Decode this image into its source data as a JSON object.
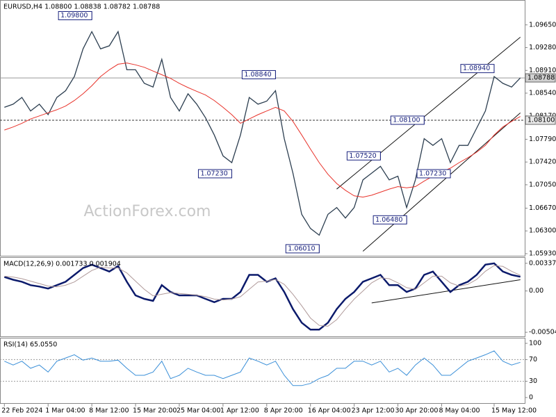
{
  "chart_data": [
    {
      "type": "line",
      "title": "EURUSD,H4 1.08800 1.08838 1.08782 1.08788",
      "watermark": "ActionForex.com",
      "ylim": [
        1.05896,
        1.10043
      ],
      "yticks": [
        {
          "value": 1.0965,
          "label": "1.09650"
        },
        {
          "value": 1.0928,
          "label": "1.09280"
        },
        {
          "value": 1.0891,
          "label": "1.08910"
        },
        {
          "value": 1.0854,
          "label": "1.08540"
        },
        {
          "value": 1.0817,
          "label": "1.08170"
        },
        {
          "value": 1.0779,
          "label": "1.07790"
        },
        {
          "value": 1.0742,
          "label": "1.07420"
        },
        {
          "value": 1.0705,
          "label": "1.07050"
        },
        {
          "value": 1.0667,
          "label": "1.06670"
        },
        {
          "value": 1.063,
          "label": "1.06300"
        },
        {
          "value": 1.0593,
          "label": "1.05930"
        }
      ],
      "series": [
        {
          "name": "Close",
          "color": "#2c3e50",
          "values": [
            1.0831,
            1.0836,
            1.0847,
            1.0825,
            1.0836,
            1.0819,
            1.0847,
            1.0858,
            1.0881,
            1.0926,
            1.0954,
            1.0926,
            1.0931,
            1.0954,
            1.0892,
            1.0892,
            1.087,
            1.0864,
            1.0909,
            1.0847,
            1.0825,
            1.0853,
            1.0836,
            1.0814,
            1.0786,
            1.0752,
            1.0741,
            1.0786,
            1.0847,
            1.0836,
            1.0841,
            1.0858,
            1.078,
            1.0724,
            1.0657,
            1.0634,
            1.0623,
            1.0657,
            1.0668,
            1.0651,
            1.0668,
            1.0713,
            1.0724,
            1.0735,
            1.0713,
            1.0719,
            1.0668,
            1.0713,
            1.078,
            1.0769,
            1.078,
            1.0741,
            1.0769,
            1.0769,
            1.0797,
            1.0825,
            1.0881,
            1.087,
            1.0864,
            1.08788
          ]
        },
        {
          "name": "MA",
          "color": "#e8322a",
          "values": [
            1.0794,
            1.0799,
            1.0805,
            1.0812,
            1.0817,
            1.0822,
            1.0827,
            1.0833,
            1.0842,
            1.0853,
            1.0866,
            1.0881,
            1.0892,
            1.0901,
            1.0903,
            1.09,
            1.0896,
            1.089,
            1.0884,
            1.0878,
            1.087,
            1.0863,
            1.0857,
            1.0851,
            1.0842,
            1.0831,
            1.0819,
            1.0805,
            1.0812,
            1.0819,
            1.0825,
            1.0831,
            1.0825,
            1.0808,
            1.0786,
            1.0763,
            1.0741,
            1.0722,
            1.0707,
            1.0696,
            1.0687,
            1.0685,
            1.0688,
            1.0693,
            1.0698,
            1.0702,
            1.07,
            1.0702,
            1.0711,
            1.0719,
            1.0726,
            1.0732,
            1.0741,
            1.0749,
            1.0758,
            1.0769,
            1.0786,
            1.0799,
            1.0808,
            1.0816
          ]
        }
      ],
      "hlines": [
        {
          "value": 1.08788,
          "label": "1.08788",
          "style": "solid"
        },
        {
          "value": 1.081,
          "label": "1.08100",
          "style": "dashed"
        }
      ],
      "trendlines": [
        {
          "x": [
            38,
            59
          ],
          "y": [
            1.0698,
            1.0945
          ]
        },
        {
          "x": [
            41,
            59
          ],
          "y": [
            1.0597,
            1.0822
          ]
        }
      ],
      "annotations": [
        {
          "label": "1.09800",
          "value": 1.098,
          "at": 10
        },
        {
          "label": "1.08840",
          "value": 1.0884,
          "at": 31
        },
        {
          "label": "1.07230",
          "value": 1.0723,
          "at": 26
        },
        {
          "label": "1.06010",
          "value": 1.0601,
          "at": 36
        },
        {
          "label": "1.07520",
          "value": 1.0752,
          "at": 43
        },
        {
          "label": "1.06480",
          "value": 1.0648,
          "at": 46
        },
        {
          "label": "1.08100",
          "value": 1.081,
          "at": 48
        },
        {
          "label": "1.07230",
          "value": 1.0723,
          "at": 51
        },
        {
          "label": "1.08940",
          "value": 1.0894,
          "at": 56
        }
      ]
    },
    {
      "type": "line",
      "title": "MACD(12,26,9) 0.001733 0.001904",
      "ylim": [
        -0.00554,
        0.00404
      ],
      "yticks": [
        0.003375,
        {
          "value": 0,
          "label": "0.00"
        },
        -0.00504
      ],
      "series": [
        {
          "name": "MACD",
          "color": "#0b1a6b",
          "values": [
            0.00171,
            0.00137,
            0.00112,
            0.00071,
            0.00054,
            0.00029,
            0.00071,
            0.00112,
            0.00196,
            0.00279,
            0.00321,
            0.00279,
            0.00237,
            0.00304,
            0.00112,
            -0.00054,
            -0.00096,
            -0.00121,
            0.00071,
            -0.00012,
            -0.00054,
            -0.00054,
            -0.00054,
            -0.00096,
            -0.00137,
            -0.00096,
            -0.00096,
            -0.00012,
            0.00196,
            0.00196,
            0.00112,
            0.00154,
            -0.00012,
            -0.00221,
            -0.00387,
            -0.00471,
            -0.00471,
            -0.00387,
            -0.00221,
            -0.00096,
            -0.00012,
            0.00112,
            0.00154,
            0.00196,
            0.00071,
            0.00071,
            -0.00012,
            0.00029,
            0.00196,
            0.00237,
            0.00112,
            -0.00012,
            0.00071,
            0.00112,
            0.00196,
            0.00321,
            0.00337,
            0.00237,
            0.00196,
            0.001733
          ]
        },
        {
          "name": "Signal",
          "color": "#b09a9a",
          "values": [
            0.0018,
            0.0017,
            0.0015,
            0.0012,
            0.0009,
            0.0006,
            0.0005,
            0.0007,
            0.0011,
            0.0018,
            0.0025,
            0.0029,
            0.0028,
            0.0028,
            0.0022,
            0.0012,
            0.0002,
            -0.0006,
            -0.0004,
            -0.0002,
            -0.0003,
            -0.0004,
            -0.0005,
            -0.0007,
            -0.001,
            -0.0011,
            -0.001,
            -0.0007,
            0.0002,
            0.0011,
            0.0012,
            0.0014,
            0.0008,
            -0.0004,
            -0.0018,
            -0.0033,
            -0.0042,
            -0.0043,
            -0.0035,
            -0.0022,
            -0.001,
            0,
            0.001,
            0.0016,
            0.0015,
            0.001,
            0.0004,
            0.0002,
            0.001,
            0.0018,
            0.0018,
            0.001,
            0.0006,
            0.0008,
            0.0014,
            0.0024,
            0.0031,
            0.003,
            0.0024,
            0.001904
          ]
        }
      ],
      "trendlines": [
        {
          "x": [
            42,
            59
          ],
          "y": [
            -0.00146,
            0.00137
          ]
        }
      ]
    },
    {
      "type": "line",
      "title": "RSI(14) 65.0550",
      "ylim": [
        -10.3,
        109
      ],
      "yticks": [
        100,
        70,
        30,
        0
      ],
      "levels": [
        70,
        30
      ],
      "categories": [
        "22 Feb 2024",
        null,
        null,
        null,
        null,
        "1 Mar 04:00",
        null,
        null,
        null,
        null,
        "8 Mar 12:00",
        null,
        null,
        null,
        null,
        "15 Mar 20:00",
        null,
        null,
        null,
        null,
        "25 Mar 04:00",
        null,
        null,
        null,
        null,
        "1 Apr 12:00",
        null,
        null,
        null,
        null,
        "8 Apr 20:00",
        null,
        null,
        null,
        null,
        "16 Apr 04:00",
        null,
        null,
        null,
        null,
        "23 Apr 12:00",
        null,
        null,
        null,
        null,
        "30 Apr 20:00",
        null,
        null,
        null,
        null,
        "8 May 04:00",
        null,
        null,
        null,
        null,
        null,
        "15 May 12:00",
        null,
        null,
        null
      ],
      "series": [
        {
          "name": "RSI",
          "color": "#3a8fd8",
          "values": [
            67,
            60,
            67,
            54,
            60,
            47,
            67,
            73,
            79,
            69,
            73,
            67,
            67,
            69,
            54,
            41,
            41,
            47,
            67,
            35,
            41,
            54,
            47,
            41,
            41,
            35,
            41,
            47,
            73,
            67,
            60,
            67,
            41,
            22,
            22,
            26,
            35,
            41,
            54,
            54,
            67,
            67,
            60,
            67,
            47,
            54,
            41,
            60,
            73,
            60,
            41,
            41,
            54,
            67,
            73,
            79,
            86,
            67,
            60,
            65.055
          ]
        }
      ]
    }
  ]
}
